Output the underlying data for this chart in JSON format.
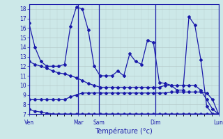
{
  "background_color": "#cce8e8",
  "line_color": "#1a1aaa",
  "grid_color": "#aabbbb",
  "xlabel": "Température (°c)",
  "ylim": [
    7,
    18.5
  ],
  "yticks": [
    7,
    8,
    9,
    10,
    11,
    12,
    13,
    14,
    15,
    16,
    17,
    18
  ],
  "xtick_labels": [
    "Ven",
    "",
    "Mar",
    "Sam",
    "",
    "Dim",
    "",
    "Lun"
  ],
  "xtick_positions": [
    0,
    3,
    7,
    10,
    14,
    18,
    22,
    27
  ],
  "day_lines": [
    0,
    7,
    10,
    18,
    27
  ],
  "series": [
    [
      16.5,
      14.0,
      12.5,
      12.0,
      12.0,
      12.0,
      12.2,
      16.2,
      18.2,
      18.0,
      15.8,
      12.0,
      11.0,
      11.0,
      11.0,
      11.5,
      11.0,
      13.3,
      12.5,
      12.2,
      14.7,
      14.5,
      10.3,
      10.2,
      10.0,
      9.5,
      9.5,
      17.2,
      16.3,
      12.7,
      7.8,
      7.0,
      7.0
    ],
    [
      12.5,
      12.2,
      12.0,
      11.8,
      11.5,
      11.3,
      11.2,
      11.0,
      10.8,
      10.5,
      10.2,
      10.0,
      9.8,
      9.8,
      9.8,
      9.8,
      9.8,
      9.8,
      9.8,
      9.8,
      9.8,
      9.8,
      9.8,
      10.0,
      10.0,
      10.0,
      10.0,
      10.0,
      10.0,
      9.5,
      8.5,
      7.5,
      7.0
    ],
    [
      8.5,
      8.5,
      8.5,
      8.5,
      8.5,
      8.5,
      8.5,
      8.8,
      9.0,
      9.2,
      9.2,
      9.2,
      9.2,
      9.2,
      9.2,
      9.2,
      9.2,
      9.2,
      9.2,
      9.2,
      9.2,
      9.2,
      9.2,
      9.2,
      9.3,
      9.3,
      9.3,
      9.3,
      9.3,
      9.3,
      9.2,
      8.5,
      7.0
    ],
    [
      7.5,
      7.3,
      7.2,
      7.1,
      7.0,
      7.0,
      7.0,
      7.0,
      7.0,
      7.0,
      7.0,
      7.0,
      7.0,
      7.0,
      7.0,
      7.0,
      7.0,
      7.0,
      7.0,
      7.0,
      7.0,
      7.0,
      7.0,
      7.0,
      7.0,
      7.0,
      7.0,
      7.0,
      7.0,
      7.0,
      7.0,
      7.0,
      7.0
    ]
  ],
  "n_points": 33,
  "x_max": 27
}
